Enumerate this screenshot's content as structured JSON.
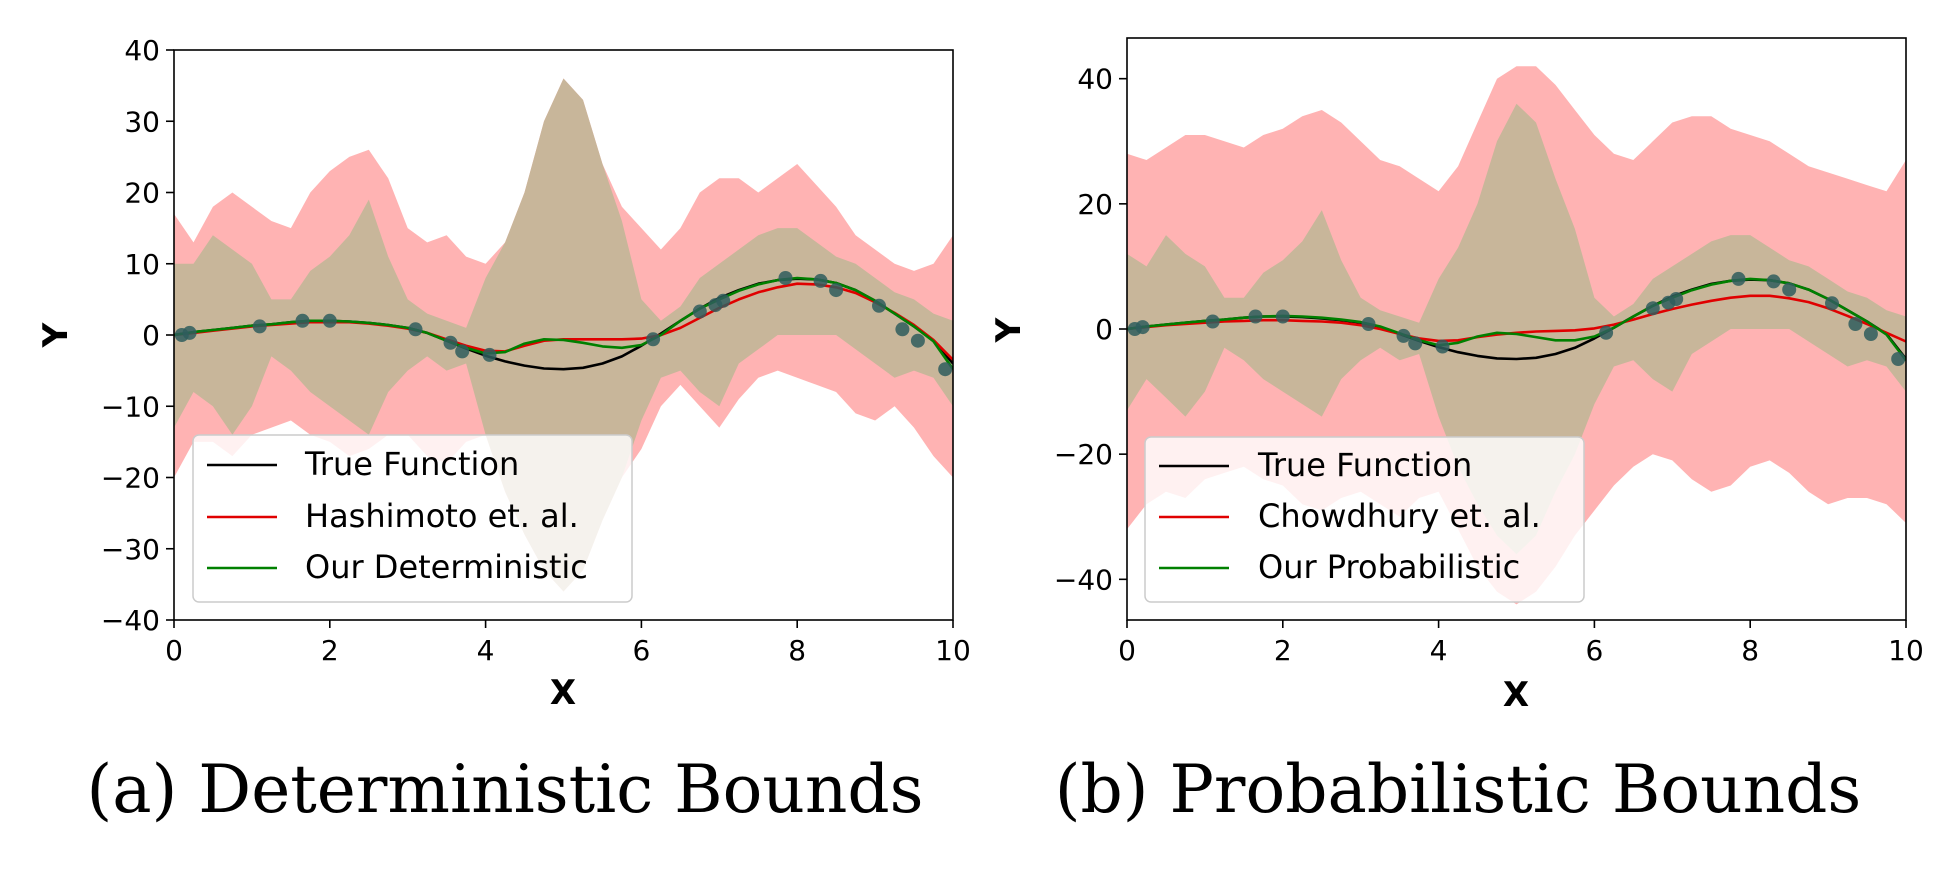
{
  "chart_data": [
    {
      "type": "line",
      "caption": "(a) Deterministic Bounds",
      "xlabel": "X",
      "ylabel": "Y",
      "xlim": [
        0,
        10
      ],
      "ylim": [
        -40,
        40
      ],
      "xticks": [
        0,
        2,
        4,
        6,
        8,
        10
      ],
      "yticks": [
        -40,
        -30,
        -20,
        -10,
        0,
        10,
        20,
        30,
        40
      ],
      "legend": {
        "placement": "lower-left",
        "entries": [
          {
            "label": "True Function",
            "color": "#000000"
          },
          {
            "label": "Hashimoto et. al.",
            "color": "#e00000"
          },
          {
            "label": "Our Deterministic",
            "color": "#008000"
          }
        ]
      },
      "x": [
        0,
        0.25,
        0.5,
        0.75,
        1,
        1.25,
        1.5,
        1.75,
        2,
        2.25,
        2.5,
        2.75,
        3,
        3.25,
        3.5,
        3.75,
        4,
        4.25,
        4.5,
        4.75,
        5,
        5.25,
        5.5,
        5.75,
        6,
        6.25,
        6.5,
        6.75,
        7,
        7.25,
        7.5,
        7.75,
        8,
        8.25,
        8.5,
        8.75,
        9,
        9.25,
        9.5,
        9.75,
        10
      ],
      "series": [
        {
          "name": "True Function",
          "color": "#000000",
          "values": [
            0,
            0.4,
            0.7,
            1,
            1.3,
            1.5,
            1.8,
            2,
            2,
            1.9,
            1.7,
            1.4,
            1,
            0.3,
            -0.8,
            -1.9,
            -2.9,
            -3.7,
            -4.3,
            -4.7,
            -4.8,
            -4.6,
            -4,
            -3,
            -1.5,
            0.2,
            2,
            3.7,
            5.2,
            6.3,
            7.2,
            7.7,
            7.9,
            7.8,
            7.3,
            6.3,
            4.8,
            3,
            1.2,
            -0.8,
            -4
          ]
        },
        {
          "name": "Hashimoto et. al.",
          "color": "#e00000",
          "values": [
            0,
            0.3,
            0.6,
            0.9,
            1.2,
            1.4,
            1.6,
            1.8,
            1.8,
            1.8,
            1.6,
            1.3,
            0.9,
            0.3,
            -0.6,
            -1.5,
            -2.2,
            -2.3,
            -1.5,
            -0.8,
            -0.6,
            -0.6,
            -0.6,
            -0.6,
            -0.5,
            0,
            1,
            2.4,
            3.8,
            5,
            6,
            6.7,
            7.2,
            7.1,
            6.7,
            5.9,
            4.6,
            3.1,
            1.4,
            -0.7,
            -3.5
          ]
        },
        {
          "name": "Our Deterministic",
          "color": "#008000",
          "values": [
            0,
            0.4,
            0.7,
            1,
            1.3,
            1.5,
            1.8,
            2,
            2,
            1.9,
            1.7,
            1.4,
            1,
            0.3,
            -0.8,
            -1.8,
            -2.6,
            -2.4,
            -1.2,
            -0.6,
            -0.7,
            -1.1,
            -1.6,
            -1.8,
            -1.4,
            0,
            2,
            3.7,
            5,
            6.2,
            7.1,
            7.7,
            8,
            7.8,
            7.3,
            6.3,
            4.8,
            3,
            1.2,
            -0.9,
            -4.8
          ]
        }
      ],
      "bands": [
        {
          "color": "#ffb3b3",
          "lower": [
            -20,
            -15,
            -15,
            -17,
            -14,
            -13,
            -12,
            -14,
            -15,
            -17,
            -16,
            -14,
            -14,
            -17,
            -18,
            -15,
            -14,
            -22,
            -28,
            -33,
            -36,
            -33,
            -26,
            -20,
            -16,
            -10,
            -7,
            -10,
            -13,
            -9,
            -6,
            -5,
            -6,
            -7,
            -8,
            -11,
            -12,
            -10,
            -13,
            -17,
            -20
          ],
          "upper": [
            17,
            13,
            18,
            20,
            18,
            16,
            15,
            20,
            23,
            25,
            26,
            22,
            15,
            13,
            14,
            11,
            10,
            13,
            20,
            30,
            36,
            33,
            24,
            18,
            15,
            12,
            15,
            20,
            22,
            22,
            20,
            22,
            24,
            21,
            18,
            14,
            12,
            10,
            9,
            10,
            14
          ]
        },
        {
          "color": "#c8b69a",
          "lower": [
            -13,
            -8,
            -10,
            -14,
            -10,
            -3,
            -5,
            -8,
            -10,
            -12,
            -14,
            -8,
            -5,
            -3,
            -5,
            -4,
            -14,
            -22,
            -28,
            -33,
            -36,
            -33,
            -26,
            -20,
            -12,
            -6,
            -5,
            -8,
            -10,
            -4,
            -2,
            0,
            0,
            0,
            0,
            -2,
            -4,
            -6,
            -5,
            -6,
            -10
          ],
          "upper": [
            10,
            10,
            14,
            12,
            10,
            5,
            5,
            9,
            11,
            14,
            19,
            11,
            5,
            3,
            2,
            1,
            8,
            13,
            20,
            30,
            36,
            33,
            24,
            16,
            5,
            2,
            4,
            8,
            10,
            12,
            14,
            15,
            15,
            13,
            11,
            10,
            8,
            6,
            5,
            3,
            2
          ]
        }
      ],
      "points": {
        "color": "#2f5d5d",
        "x": [
          0.1,
          0.2,
          1.1,
          1.65,
          2,
          3.1,
          3.55,
          3.7,
          4.05,
          6.15,
          6.75,
          6.95,
          7.05,
          7.85,
          8.3,
          8.5,
          9.05,
          9.35,
          9.55,
          9.9
        ],
        "y": [
          0,
          0.3,
          1.2,
          2,
          2,
          0.8,
          -1.1,
          -2.3,
          -2.8,
          -0.6,
          3.3,
          4.2,
          4.8,
          8,
          7.6,
          6.3,
          4.1,
          0.8,
          -0.8,
          -4.8
        ]
      }
    },
    {
      "type": "line",
      "caption": "(b) Probabilistic Bounds",
      "xlabel": "X",
      "ylabel": "Y",
      "xlim": [
        0,
        10
      ],
      "ylim": [
        -46.5,
        46.5
      ],
      "xticks": [
        0,
        2,
        4,
        6,
        8,
        10
      ],
      "yticks": [
        -40,
        -20,
        0,
        20,
        40
      ],
      "legend": {
        "placement": "lower-left",
        "entries": [
          {
            "label": "True Function",
            "color": "#000000"
          },
          {
            "label": "Chowdhury et. al.",
            "color": "#e00000"
          },
          {
            "label": "Our Probabilistic",
            "color": "#008000"
          }
        ]
      },
      "x": [
        0,
        0.25,
        0.5,
        0.75,
        1,
        1.25,
        1.5,
        1.75,
        2,
        2.25,
        2.5,
        2.75,
        3,
        3.25,
        3.5,
        3.75,
        4,
        4.25,
        4.5,
        4.75,
        5,
        5.25,
        5.5,
        5.75,
        6,
        6.25,
        6.5,
        6.75,
        7,
        7.25,
        7.5,
        7.75,
        8,
        8.25,
        8.5,
        8.75,
        9,
        9.25,
        9.5,
        9.75,
        10
      ],
      "series": [
        {
          "name": "True Function",
          "color": "#000000",
          "values": [
            0,
            0.4,
            0.7,
            1,
            1.3,
            1.5,
            1.8,
            2,
            2,
            1.9,
            1.7,
            1.4,
            1,
            0.3,
            -0.8,
            -1.9,
            -2.9,
            -3.7,
            -4.3,
            -4.7,
            -4.8,
            -4.6,
            -4,
            -3,
            -1.5,
            0.2,
            2,
            3.7,
            5.2,
            6.3,
            7.2,
            7.7,
            7.9,
            7.8,
            7.3,
            6.3,
            4.8,
            3,
            1.2,
            -0.8,
            -4.8
          ]
        },
        {
          "name": "Chowdhury et. al.",
          "color": "#e00000",
          "values": [
            0,
            0.3,
            0.6,
            0.8,
            1,
            1.2,
            1.3,
            1.4,
            1.4,
            1.3,
            1.2,
            1,
            0.6,
            0,
            -0.8,
            -1.5,
            -1.9,
            -1.8,
            -1.3,
            -0.9,
            -0.6,
            -0.4,
            -0.3,
            -0.2,
            0.1,
            0.7,
            1.5,
            2.4,
            3.2,
            3.9,
            4.5,
            5,
            5.3,
            5.3,
            4.9,
            4.3,
            3.3,
            2.1,
            0.8,
            -0.6,
            -2
          ]
        },
        {
          "name": "Our Probabilistic",
          "color": "#008000",
          "values": [
            0,
            0.4,
            0.7,
            1,
            1.3,
            1.5,
            1.8,
            2,
            2.1,
            2,
            1.8,
            1.5,
            1.1,
            0.4,
            -0.7,
            -1.8,
            -2.6,
            -2.2,
            -1.2,
            -0.6,
            -0.8,
            -1.3,
            -1.8,
            -1.8,
            -1.2,
            0.2,
            2,
            3.7,
            5,
            6.2,
            7.1,
            7.7,
            8,
            7.8,
            7.3,
            6.3,
            4.8,
            3,
            1.2,
            -0.9,
            -5
          ]
        }
      ],
      "bands": [
        {
          "color": "#ffb3b3",
          "lower": [
            -32,
            -28,
            -26,
            -27,
            -24,
            -23,
            -22,
            -24,
            -25,
            -28,
            -29,
            -27,
            -26,
            -28,
            -30,
            -27,
            -26,
            -32,
            -38,
            -42,
            -44,
            -42,
            -38,
            -33,
            -29,
            -25,
            -22,
            -20,
            -21,
            -24,
            -26,
            -25,
            -22,
            -21,
            -23,
            -26,
            -28,
            -27,
            -27,
            -28,
            -31
          ],
          "upper": [
            28,
            27,
            29,
            31,
            31,
            30,
            29,
            31,
            32,
            34,
            35,
            33,
            30,
            27,
            26,
            24,
            22,
            26,
            33,
            40,
            42,
            42,
            39,
            35,
            31,
            28,
            27,
            30,
            33,
            34,
            34,
            32,
            31,
            30,
            28,
            26,
            25,
            24,
            23,
            22,
            27
          ]
        },
        {
          "color": "#c8b69a",
          "lower": [
            -13,
            -8,
            -11,
            -14,
            -10,
            -3,
            -5,
            -8,
            -10,
            -12,
            -14,
            -8,
            -5,
            -3,
            -5,
            -4,
            -14,
            -22,
            -28,
            -33,
            -36,
            -33,
            -26,
            -20,
            -12,
            -6,
            -5,
            -8,
            -10,
            -4,
            -2,
            0,
            0,
            0,
            0,
            -2,
            -4,
            -6,
            -5,
            -6,
            -10
          ],
          "upper": [
            12,
            10,
            15,
            12,
            10,
            5,
            5,
            9,
            11,
            14,
            19,
            11,
            5,
            3,
            2,
            1,
            8,
            13,
            20,
            30,
            36,
            33,
            24,
            16,
            5,
            2,
            4,
            8,
            10,
            12,
            14,
            15,
            15,
            13,
            11,
            10,
            8,
            6,
            5,
            3,
            2
          ]
        }
      ],
      "points": {
        "color": "#2f5d5d",
        "x": [
          0.1,
          0.2,
          1.1,
          1.65,
          2,
          3.1,
          3.55,
          3.7,
          4.05,
          6.15,
          6.75,
          6.95,
          7.05,
          7.85,
          8.3,
          8.5,
          9.05,
          9.35,
          9.55,
          9.9
        ],
        "y": [
          0,
          0.3,
          1.2,
          2,
          2,
          0.8,
          -1.1,
          -2.3,
          -2.8,
          -0.6,
          3.3,
          4.2,
          4.8,
          8,
          7.6,
          6.3,
          4.1,
          0.8,
          -0.8,
          -4.8
        ]
      }
    }
  ]
}
